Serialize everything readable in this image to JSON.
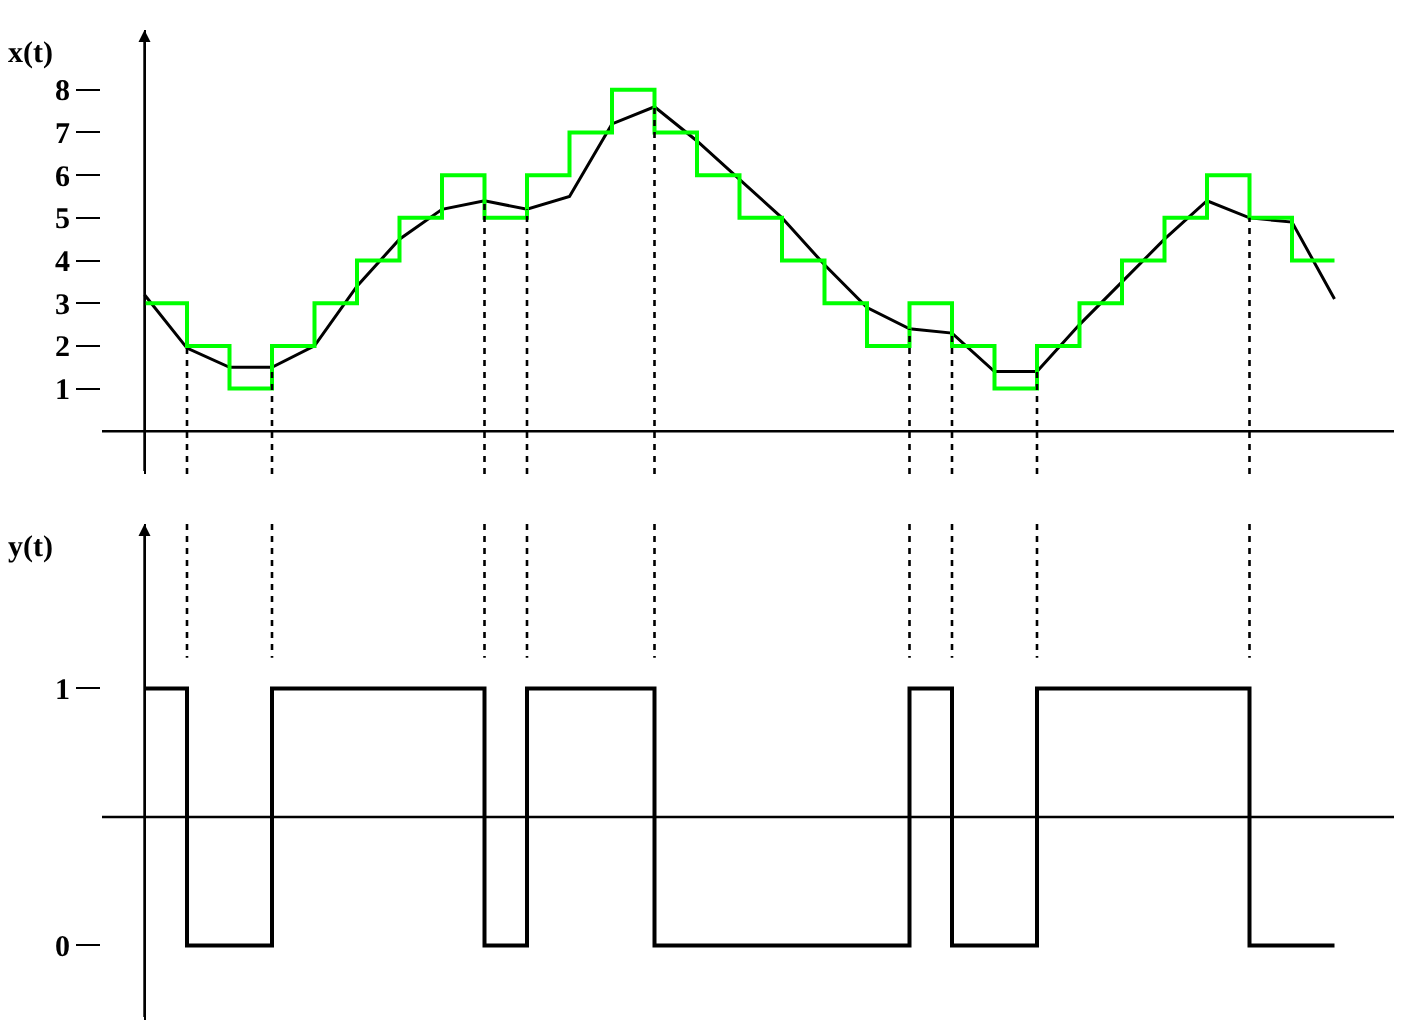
{
  "chart_data": [
    {
      "type": "line",
      "ylabel": "x(t)",
      "ylim": [
        -1,
        9.4
      ],
      "yticks": [
        1,
        2,
        3,
        4,
        5,
        6,
        7,
        8
      ],
      "tick_labels": "y",
      "categories": [
        null,
        null,
        null,
        null,
        null,
        null,
        null,
        null,
        null,
        null,
        null,
        null,
        null,
        null,
        null,
        null,
        null,
        null,
        null,
        null,
        null,
        null,
        null,
        null,
        null,
        null,
        null,
        null,
        null
      ],
      "series": [
        {
          "type": "line",
          "color": "#000000",
          "values": [
            3.2,
            1.95,
            1.5,
            1.5,
            2.0,
            3.4,
            4.5,
            5.2,
            5.4,
            5.2,
            5.5,
            7.2,
            7.6,
            6.8,
            5.9,
            5.0,
            3.9,
            2.9,
            2.4,
            2.3,
            1.4,
            1.4,
            2.5,
            3.5,
            4.5,
            5.4,
            5.0,
            4.9,
            3.1
          ]
        },
        {
          "type": "step",
          "color": "#00ff00",
          "values": [
            3,
            2,
            1,
            2,
            3,
            4,
            5,
            6,
            5,
            6,
            7,
            8,
            7,
            6,
            5,
            4,
            3,
            2,
            3,
            2,
            1,
            2,
            3,
            4,
            5,
            6,
            5,
            4,
            4
          ]
        }
      ],
      "ref_lines": [
        {
          "axis": "y",
          "value": 0,
          "line_style": "solid",
          "color": "#000000"
        }
      ]
    },
    {
      "type": "step",
      "ylabel": "y(t)",
      "ylim": [
        -0.29,
        1.64
      ],
      "yticks": [
        0,
        1
      ],
      "tick_labels": "y",
      "categories": [
        null,
        null,
        null,
        null,
        null,
        null,
        null,
        null,
        null,
        null,
        null,
        null,
        null,
        null,
        null,
        null,
        null,
        null,
        null,
        null,
        null,
        null,
        null,
        null,
        null,
        null,
        null,
        null,
        null
      ],
      "series": [
        {
          "color": "#000000",
          "values": [
            1,
            0,
            0,
            1,
            1,
            1,
            1,
            1,
            0,
            1,
            1,
            1,
            0,
            0,
            0,
            0,
            0,
            0,
            1,
            0,
            0,
            1,
            1,
            1,
            1,
            1,
            0,
            0,
            0
          ]
        }
      ],
      "ref_lines": [
        {
          "axis": "y",
          "value": 0.5,
          "line_style": "solid",
          "color": "#000000"
        }
      ]
    }
  ]
}
